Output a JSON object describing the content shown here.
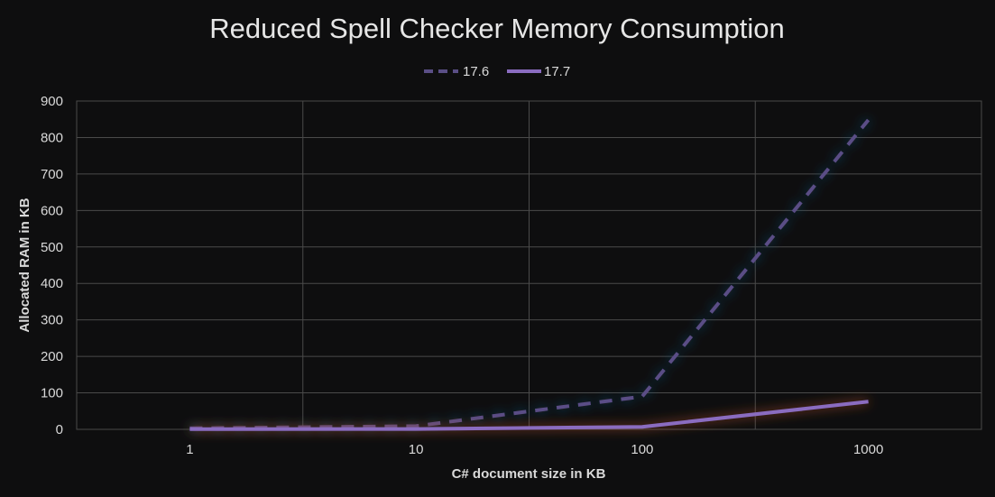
{
  "chart_data": {
    "type": "line",
    "title": "Reduced Spell Checker Memory Consumption",
    "xlabel": "C# document size in KB",
    "ylabel": "Allocated RAM in KB",
    "x_scale": "log",
    "categories": [
      "1",
      "10",
      "100",
      "1000"
    ],
    "x": [
      1,
      10,
      100,
      1000
    ],
    "ylim": [
      0,
      900
    ],
    "y_ticks": [
      "0",
      "100",
      "200",
      "300",
      "400",
      "500",
      "600",
      "700",
      "800",
      "900"
    ],
    "grid": true,
    "legend_position": "top-center",
    "series": [
      {
        "name": "17.6",
        "values": [
          3,
          9,
          90,
          848
        ],
        "color": "#5a4e86",
        "line_style": "dashed",
        "glow_color": "#1e5a86"
      },
      {
        "name": "17.7",
        "values": [
          0.5,
          1,
          7,
          76
        ],
        "color": "#8a6cc0",
        "line_style": "solid",
        "glow_color": "#b4502a"
      }
    ]
  }
}
